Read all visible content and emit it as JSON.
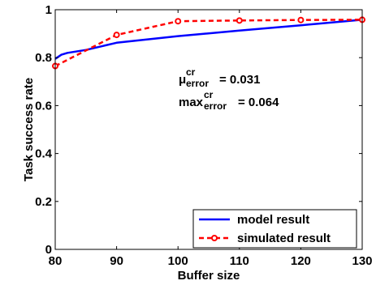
{
  "chart_data": {
    "type": "line",
    "title": "",
    "xlabel": "Buffer size",
    "ylabel": "Task success rate",
    "xlim": [
      80,
      130
    ],
    "ylim": [
      0,
      1
    ],
    "xticks": [
      "80",
      "90",
      "100",
      "110",
      "120",
      "130"
    ],
    "yticks": [
      "0",
      "0.2",
      "0.4",
      "0.6",
      "0.8",
      "1"
    ],
    "grid": false,
    "legend_position": "bottom-right",
    "series": [
      {
        "name": "model result",
        "color": "#0000ff",
        "style": "solid",
        "marker": "none",
        "x": [
          80,
          81,
          82,
          85,
          90,
          100,
          110,
          120,
          130
        ],
        "y": [
          0.795,
          0.812,
          0.82,
          0.832,
          0.862,
          0.89,
          0.913,
          0.935,
          0.958
        ]
      },
      {
        "name": "simulated result",
        "color": "#ff0000",
        "style": "dashed",
        "marker": "circle",
        "x": [
          80,
          90,
          100,
          110,
          120,
          130
        ],
        "y": [
          0.765,
          0.895,
          0.952,
          0.955,
          0.957,
          0.958
        ]
      }
    ],
    "annotations": [
      {
        "base": "μ",
        "sub": "error",
        "sup": "cr",
        "text": "= 0.031"
      },
      {
        "base": "max",
        "sub": "error",
        "sup": "cr",
        "text": "= 0.064"
      }
    ]
  }
}
